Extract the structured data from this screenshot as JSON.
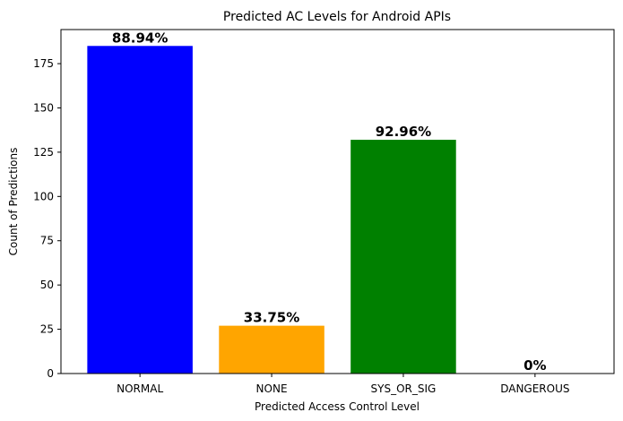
{
  "chart_data": {
    "type": "bar",
    "title": "Predicted AC Levels for Android APIs",
    "xlabel": "Predicted Access Control Level",
    "ylabel": "Count of Predictions",
    "categories": [
      "NORMAL",
      "NONE",
      "SYS_OR_SIG",
      "DANGEROUS"
    ],
    "values": [
      185,
      27,
      132,
      0
    ],
    "data_labels": [
      "88.94%",
      "33.75%",
      "92.96%",
      "0%"
    ],
    "colors": [
      "#0000ff",
      "#ffa500",
      "#008000",
      "#ffffff"
    ],
    "ylim": [
      0,
      194.25
    ],
    "yticks": [
      0,
      25,
      50,
      75,
      100,
      125,
      150,
      175
    ],
    "grid": false
  }
}
